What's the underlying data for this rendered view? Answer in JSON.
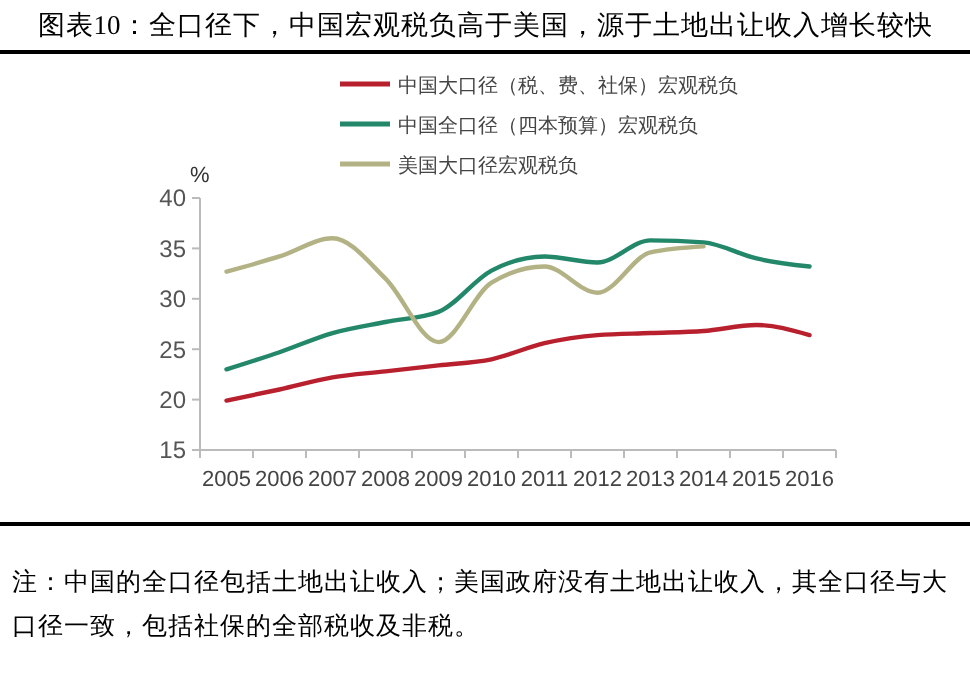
{
  "chart_data": {
    "type": "line",
    "title": "图表10：全口径下，中国宏观税负高于美国，源于土地出让收入增长较快",
    "ylabel": "%",
    "categories": [
      "2005",
      "2006",
      "2007",
      "2008",
      "2009",
      "2010",
      "2011",
      "2012",
      "2013",
      "2014",
      "2015",
      "2016"
    ],
    "series": [
      {
        "name": "中国大口径（税、费、社保）宏观税负",
        "color": "#b8202e",
        "values": [
          19.9,
          21.0,
          22.2,
          22.8,
          23.4,
          24.0,
          25.6,
          26.4,
          26.6,
          26.8,
          27.4,
          26.4
        ]
      },
      {
        "name": "中国全口径（四本预算）宏观税负",
        "color": "#23876a",
        "values": [
          23.0,
          24.7,
          26.6,
          27.7,
          28.7,
          32.8,
          34.2,
          33.6,
          35.8,
          35.6,
          34.0,
          33.2
        ]
      },
      {
        "name": "美国大口径宏观税负",
        "color": "#b3b285",
        "values": [
          32.7,
          34.2,
          36.0,
          32.0,
          25.7,
          31.6,
          33.2,
          30.6,
          34.6,
          35.2,
          null,
          null
        ]
      }
    ],
    "ylim": [
      15,
      40
    ],
    "yticks": [
      15,
      20,
      25,
      30,
      35,
      40
    ],
    "grid": false,
    "legend": "top",
    "marker": "none",
    "line_style": "solid",
    "annotations": [
      "注：中国的全口径包括土地出让收入；美国政府没有土地出让收入，其全口径与大口径一致，包括社保的全部税收及非税。"
    ]
  }
}
